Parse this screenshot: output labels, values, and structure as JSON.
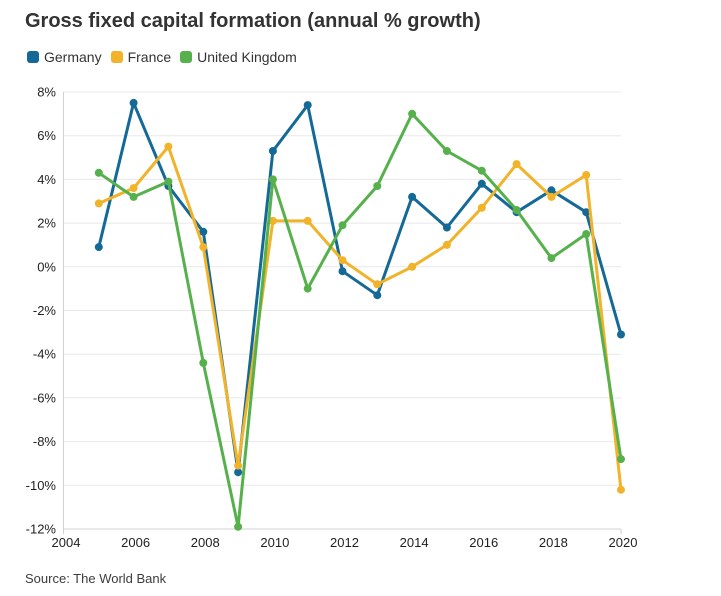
{
  "header": {
    "title": "Gross fixed capital formation (annual % growth)"
  },
  "source": {
    "label": "Source: The World Bank"
  },
  "chart_data": {
    "type": "line",
    "title": "Gross fixed capital formation (annual % growth)",
    "x": [
      2005,
      2006,
      2007,
      2008,
      2009,
      2010,
      2011,
      2012,
      2013,
      2014,
      2015,
      2016,
      2017,
      2018,
      2019,
      2020
    ],
    "series": [
      {
        "name": "Germany",
        "color": "#146996",
        "values": [
          0.9,
          7.5,
          3.7,
          1.6,
          -9.4,
          5.3,
          7.4,
          -0.2,
          -1.3,
          3.2,
          1.8,
          3.8,
          2.5,
          3.5,
          2.5,
          -3.1
        ]
      },
      {
        "name": "France",
        "color": "#F0B32A",
        "values": [
          2.9,
          3.6,
          5.5,
          0.9,
          -9.1,
          2.1,
          2.1,
          0.3,
          -0.8,
          0.0,
          1.0,
          2.7,
          4.7,
          3.2,
          4.2,
          -10.2
        ]
      },
      {
        "name": "United Kingdom",
        "color": "#56B14C",
        "values": [
          4.3,
          3.2,
          3.9,
          -4.4,
          -11.9,
          4.0,
          -1.0,
          1.9,
          3.7,
          7.0,
          5.3,
          4.4,
          2.6,
          0.4,
          1.5,
          -8.8
        ]
      }
    ],
    "xlim": [
      2004,
      2020
    ],
    "ylim": [
      -12,
      8
    ],
    "x_ticks": [
      2004,
      2006,
      2008,
      2010,
      2012,
      2014,
      2016,
      2018,
      2020
    ],
    "x_tick_labels": [
      "2004",
      "2006",
      "2008",
      "2010",
      "2012",
      "2014",
      "2016",
      "2018",
      "2020"
    ],
    "y_ticks": [
      8,
      6,
      4,
      2,
      0,
      -2,
      -4,
      -6,
      -8,
      -10,
      -12
    ],
    "y_tick_labels": [
      "8%",
      "6%",
      "4%",
      "2%",
      "0%",
      "-2%",
      "-4%",
      "-6%",
      "-8%",
      "-10%",
      "-12%"
    ],
    "grid": "horizontal",
    "legend_position": "top-left",
    "grid_color": "#e8e8e8",
    "axis_color": "#d2d2d2",
    "xlabel": "",
    "ylabel": ""
  }
}
